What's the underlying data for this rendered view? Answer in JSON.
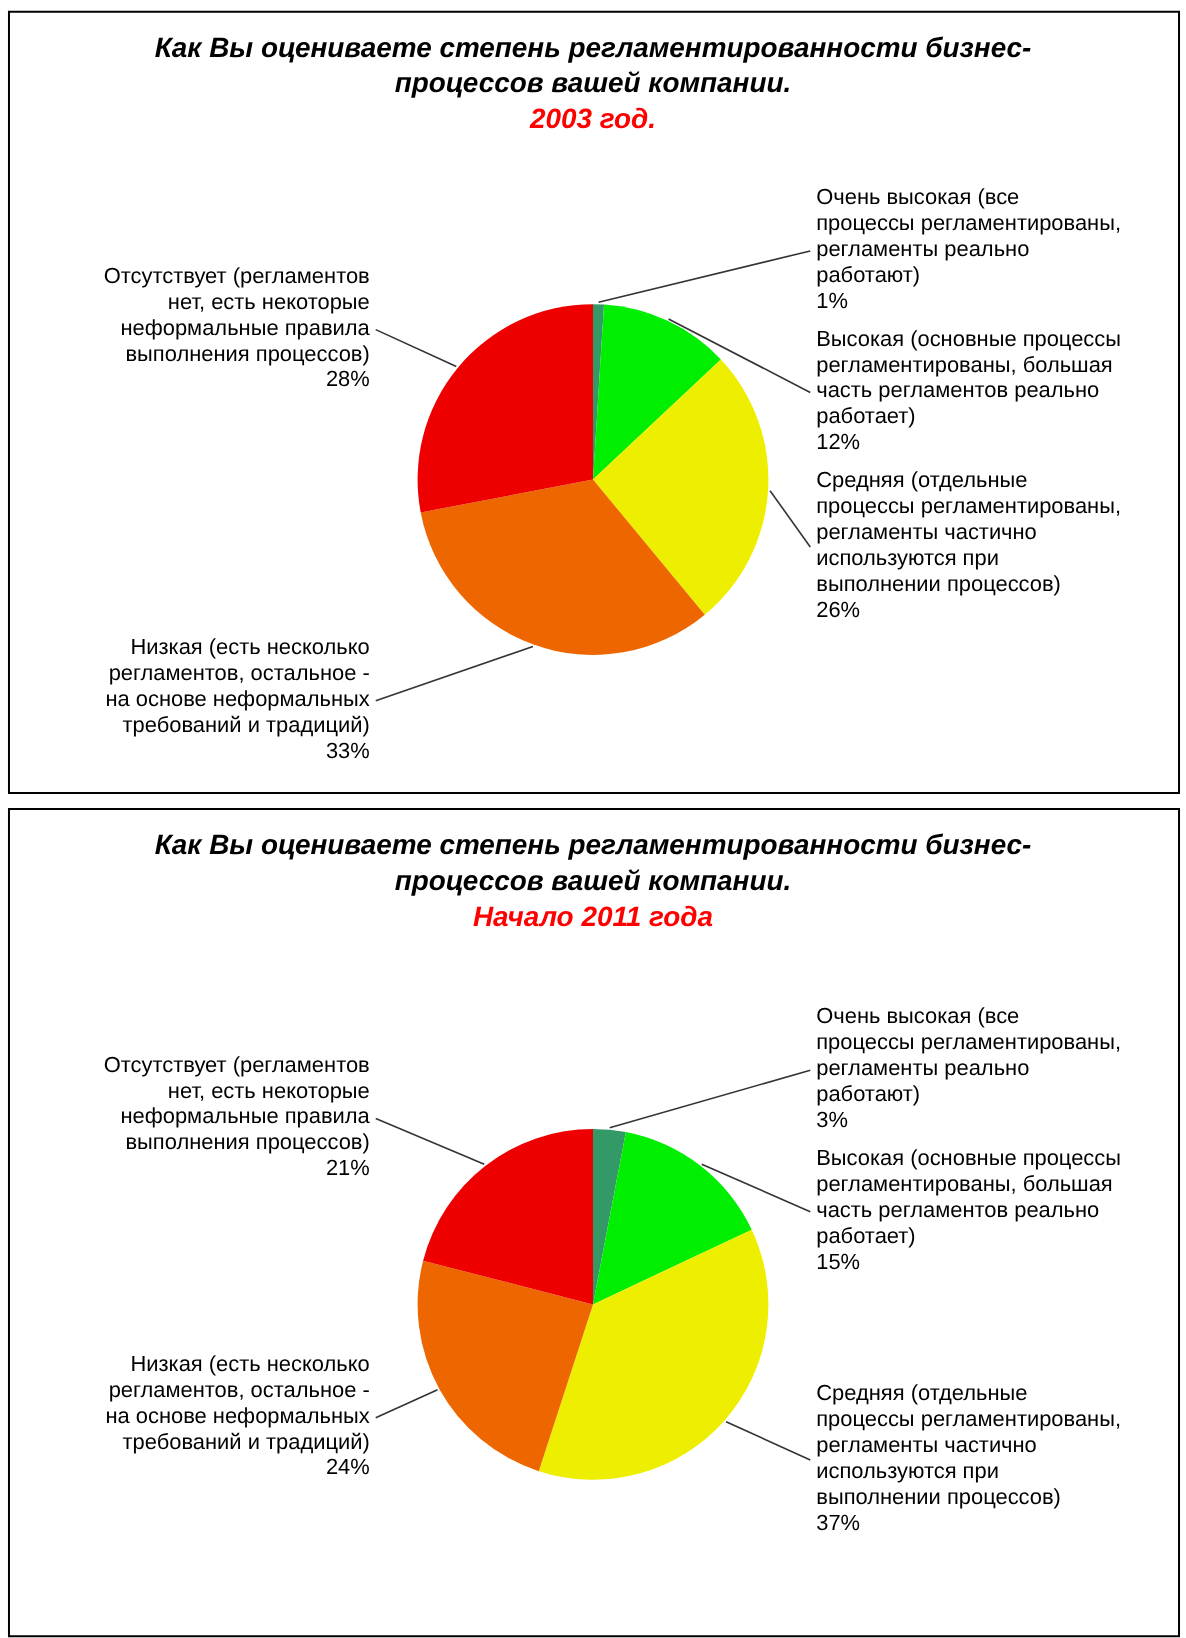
{
  "chart_data": [
    {
      "type": "pie",
      "title": "Как Вы оцениваете степень регламентированности бизнес-процессов вашей компании.",
      "subtitle": "2003 год.",
      "categories": [
        "Очень высокая (все процессы регламентированы, регламенты реально работают)",
        "Высокая (основные процессы регламентированы, большая часть регламентов реально работает)",
        "Средняя (отдельные процессы регламентированы, регламенты частично используются при выполнении процессов)",
        "Низкая (есть несколько регламентов, остальное - на основе неформальных требований и традиций)",
        "Отсутствует (регламентов нет, есть некоторые неформальные правила выполнения процессов)"
      ],
      "values": [
        1,
        12,
        26,
        33,
        28
      ],
      "value_labels": [
        "1%",
        "12%",
        "26%",
        "33%",
        "28%"
      ],
      "colors": [
        "#339966",
        "#00ee00",
        "#eeee00",
        "#ee6600",
        "#ee0000"
      ]
    },
    {
      "type": "pie",
      "title": "Как Вы оцениваете степень регламентированности бизнес-процессов вашей компании.",
      "subtitle": "Начало 2011 года",
      "categories": [
        "Очень высокая (все процессы регламентированы, регламенты реально работают)",
        "Высокая (основные процессы регламентированы, большая часть регламентов реально работает)",
        "Средняя (отдельные процессы регламентированы, регламенты частично используются при выполнении процессов)",
        "Низкая (есть несколько регламентов, остальное - на основе неформальных требований и традиций)",
        "Отсутствует (регламентов нет, есть некоторые неформальные правила выполнения процессов)"
      ],
      "values": [
        3,
        15,
        37,
        24,
        21
      ],
      "value_labels": [
        "3%",
        "15%",
        "37%",
        "24%",
        "21%"
      ],
      "colors": [
        "#339966",
        "#00ee00",
        "#eeee00",
        "#ee6600",
        "#ee0000"
      ]
    }
  ]
}
